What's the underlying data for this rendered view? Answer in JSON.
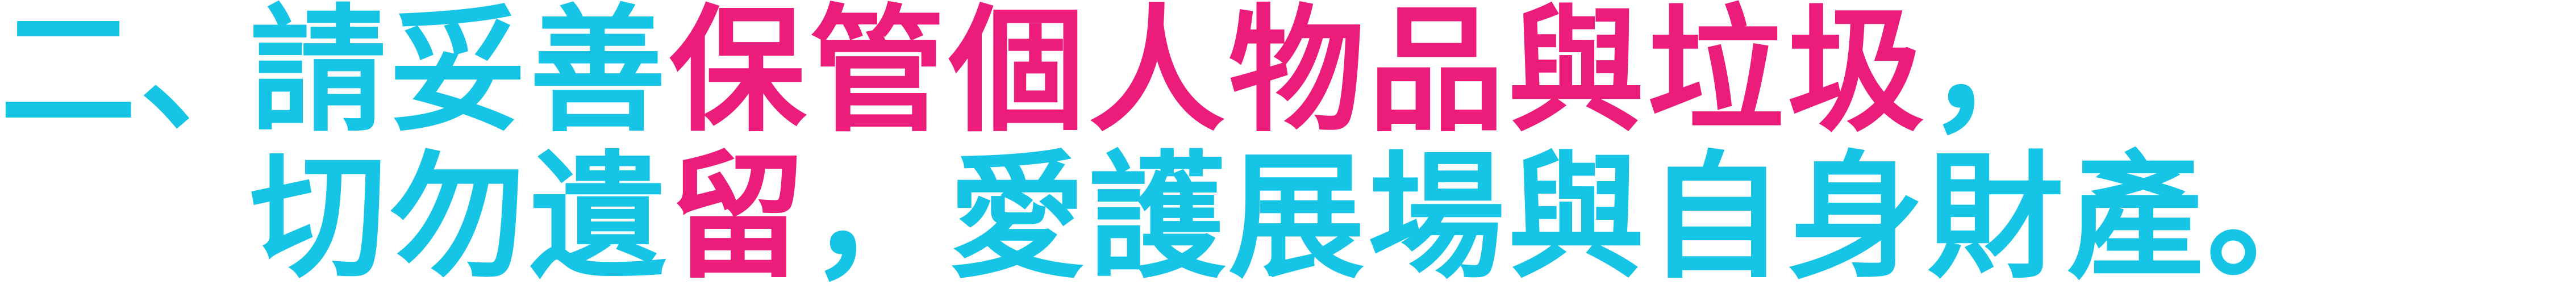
{
  "notice": {
    "line1": {
      "prefix": "二、",
      "part_a": "請妥善",
      "part_b": "保管個人物品與垃圾",
      "part_c": "，"
    },
    "line2": {
      "part_a": "切勿遺",
      "part_b": "留",
      "part_c": "，愛護展場與自身財產。"
    }
  },
  "colors": {
    "cyan": "#16c5e6",
    "magenta": "#ec1c7a"
  }
}
